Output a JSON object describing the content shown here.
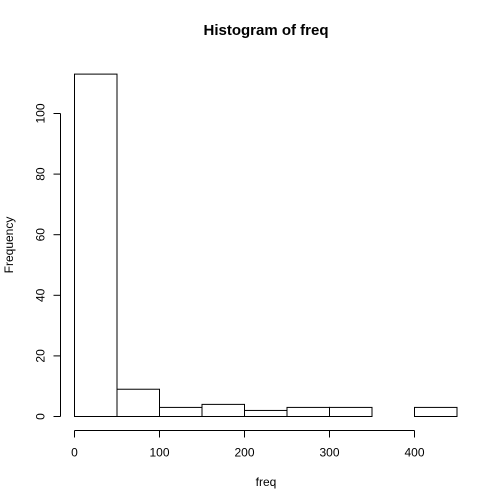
{
  "chart_data": {
    "type": "bar",
    "title": "Histogram of freq",
    "xlabel": "freq",
    "ylabel": "Frequency",
    "bins": [
      {
        "x0": 0,
        "x1": 50,
        "count": 113
      },
      {
        "x0": 50,
        "x1": 100,
        "count": 9
      },
      {
        "x0": 100,
        "x1": 150,
        "count": 3
      },
      {
        "x0": 150,
        "x1": 200,
        "count": 4
      },
      {
        "x0": 200,
        "x1": 250,
        "count": 2
      },
      {
        "x0": 250,
        "x1": 300,
        "count": 3
      },
      {
        "x0": 300,
        "x1": 350,
        "count": 3
      },
      {
        "x0": 350,
        "x1": 400,
        "count": 0
      },
      {
        "x0": 400,
        "x1": 450,
        "count": 3
      }
    ],
    "xlim": [
      0,
      450
    ],
    "ylim": [
      0,
      113
    ],
    "x_ticks": [
      0,
      100,
      200,
      300,
      400
    ],
    "y_ticks": [
      0,
      20,
      40,
      60,
      80,
      100
    ],
    "grid": false,
    "legend": "none"
  }
}
